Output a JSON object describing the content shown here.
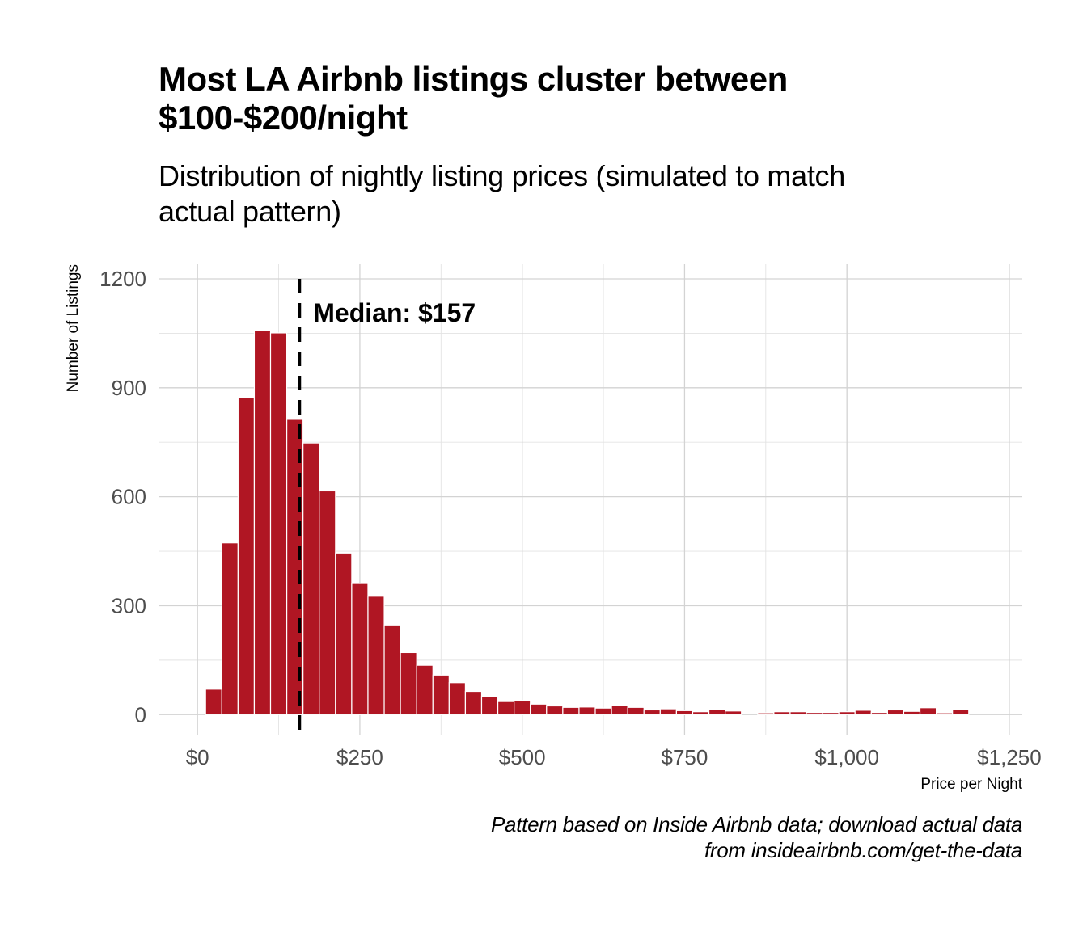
{
  "title_lines": [
    "Most LA Airbnb listings cluster between",
    "$100-$200/night"
  ],
  "subtitle_lines": [
    "Distribution of nightly listing prices (simulated to match",
    "actual pattern)"
  ],
  "caption_lines": [
    "Pattern based on Inside Airbnb data; download actual data",
    "from insideairbnb.com/get-the-data"
  ],
  "colors": {
    "bar_fill": "#B01623",
    "median_line": "#000000",
    "grid": "#d3d3d3"
  },
  "chart_data": {
    "type": "bar",
    "subtype": "histogram",
    "title": "Most LA Airbnb listings cluster between $100-$200/night",
    "subtitle": "Distribution of nightly listing prices (simulated to match actual pattern)",
    "xlabel": "Price per Night",
    "ylabel": "Number of Listings",
    "bin_width": 25,
    "bin_centers": [
      25,
      50,
      75,
      100,
      125,
      150,
      175,
      200,
      225,
      250,
      275,
      300,
      325,
      350,
      375,
      400,
      425,
      450,
      475,
      500,
      525,
      550,
      575,
      600,
      625,
      650,
      675,
      700,
      725,
      750,
      775,
      800,
      825,
      850,
      875,
      900,
      925,
      950,
      975,
      1000,
      1025,
      1050,
      1075,
      1100,
      1125,
      1150,
      1175
    ],
    "values": [
      70,
      473,
      872,
      1058,
      1051,
      813,
      748,
      616,
      445,
      361,
      326,
      247,
      171,
      136,
      109,
      88,
      64,
      50,
      36,
      39,
      29,
      24,
      20,
      21,
      18,
      26,
      20,
      13,
      16,
      11,
      8,
      14,
      10,
      0,
      5,
      8,
      8,
      6,
      6,
      8,
      12,
      6,
      13,
      9,
      19,
      5,
      15
    ],
    "xlim": [
      -60,
      1270
    ],
    "ylim": [
      -55,
      1240
    ],
    "x_ticks": [
      0,
      250,
      500,
      750,
      1000,
      1250
    ],
    "x_tick_labels": [
      "$0",
      "$250",
      "$500",
      "$750",
      "$1,000",
      "$1,250"
    ],
    "y_ticks": [
      0,
      300,
      600,
      900,
      1200
    ],
    "y_tick_labels": [
      "0",
      "300",
      "600",
      "900",
      "1200"
    ],
    "grid": true,
    "annotations": [
      {
        "type": "vline",
        "x": 157,
        "style": "dashed"
      },
      {
        "type": "text",
        "x": 157,
        "y": 1100,
        "label": "Median: $157"
      }
    ]
  }
}
